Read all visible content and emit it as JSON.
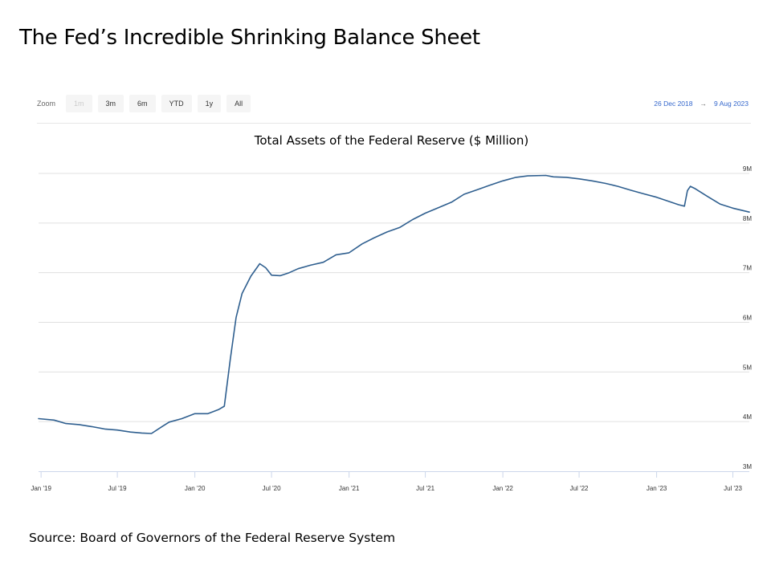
{
  "slide": {
    "title": "The Fed’s Incredible Shrinking Balance Sheet",
    "source": "Source: Board of Governors of the Federal Reserve System"
  },
  "navigator": {
    "zoom_label": "Zoom",
    "buttons": [
      {
        "label": "1m",
        "enabled": false
      },
      {
        "label": "3m",
        "enabled": true
      },
      {
        "label": "6m",
        "enabled": true
      },
      {
        "label": "YTD",
        "enabled": true
      },
      {
        "label": "1y",
        "enabled": true
      },
      {
        "label": "All",
        "enabled": true
      }
    ],
    "range_from": "26 Dec 2018",
    "range_arrow": "→",
    "range_to": "9 Aug 2023"
  },
  "colors": {
    "line": "#2f5f8f",
    "grid": "#e0e0e0",
    "range_text": "#3366cc"
  },
  "chart_data": {
    "type": "line",
    "title": "Total Assets of the Federal Reserve ($ Million)",
    "x_range": [
      "2018-12-26",
      "2023-08-09"
    ],
    "ylim": [
      3000000,
      9000000
    ],
    "y_ticks": [
      {
        "value": 3000000,
        "label": "3M"
      },
      {
        "value": 4000000,
        "label": "4M"
      },
      {
        "value": 5000000,
        "label": "5M"
      },
      {
        "value": 6000000,
        "label": "6M"
      },
      {
        "value": 7000000,
        "label": "7M"
      },
      {
        "value": 8000000,
        "label": "8M"
      },
      {
        "value": 9000000,
        "label": "9M"
      }
    ],
    "x_ticks": [
      {
        "value": "2019-01-01",
        "label": "Jan '19"
      },
      {
        "value": "2019-07-01",
        "label": "Jul '19"
      },
      {
        "value": "2020-01-01",
        "label": "Jan '20"
      },
      {
        "value": "2020-07-01",
        "label": "Jul '20"
      },
      {
        "value": "2021-01-01",
        "label": "Jan '21"
      },
      {
        "value": "2021-07-01",
        "label": "Jul '21"
      },
      {
        "value": "2022-01-01",
        "label": "Jan '22"
      },
      {
        "value": "2022-07-01",
        "label": "Jul '22"
      },
      {
        "value": "2023-01-01",
        "label": "Jan '23"
      },
      {
        "value": "2023-07-01",
        "label": "Jul '23"
      }
    ],
    "grid": true,
    "legend": "none",
    "series": [
      {
        "x": [
          "2018-12-26",
          "2019-02-01",
          "2019-03-01",
          "2019-04-01",
          "2019-05-01",
          "2019-06-01",
          "2019-07-01",
          "2019-08-01",
          "2019-08-28",
          "2019-09-20",
          "2019-10-15",
          "2019-11-01",
          "2019-12-01",
          "2020-01-01",
          "2020-02-01",
          "2020-02-26",
          "2020-03-11",
          "2020-03-25",
          "2020-04-08",
          "2020-04-22",
          "2020-05-13",
          "2020-06-03",
          "2020-06-17",
          "2020-07-01",
          "2020-07-22",
          "2020-08-12",
          "2020-09-02",
          "2020-10-01",
          "2020-11-01",
          "2020-12-01",
          "2021-01-01",
          "2021-02-01",
          "2021-03-01",
          "2021-04-01",
          "2021-05-01",
          "2021-06-01",
          "2021-07-01",
          "2021-08-01",
          "2021-09-01",
          "2021-10-01",
          "2021-11-01",
          "2021-12-01",
          "2022-01-01",
          "2022-02-01",
          "2022-03-01",
          "2022-04-13",
          "2022-05-01",
          "2022-06-01",
          "2022-07-01",
          "2022-08-01",
          "2022-09-01",
          "2022-10-01",
          "2022-11-01",
          "2022-12-01",
          "2023-01-01",
          "2023-02-01",
          "2023-02-22",
          "2023-03-08",
          "2023-03-15",
          "2023-03-22",
          "2023-04-01",
          "2023-05-01",
          "2023-06-01",
          "2023-07-01",
          "2023-08-09"
        ],
        "y": [
          4060000,
          4030000,
          3960000,
          3940000,
          3900000,
          3850000,
          3830000,
          3790000,
          3770000,
          3760000,
          3900000,
          3990000,
          4060000,
          4160000,
          4160000,
          4240000,
          4310000,
          5250000,
          6100000,
          6580000,
          6930000,
          7180000,
          7100000,
          6950000,
          6940000,
          7000000,
          7080000,
          7150000,
          7210000,
          7360000,
          7400000,
          7580000,
          7700000,
          7820000,
          7910000,
          8070000,
          8200000,
          8310000,
          8420000,
          8580000,
          8670000,
          8760000,
          8850000,
          8920000,
          8950000,
          8960000,
          8930000,
          8920000,
          8890000,
          8850000,
          8800000,
          8740000,
          8660000,
          8590000,
          8520000,
          8430000,
          8370000,
          8340000,
          8650000,
          8740000,
          8700000,
          8540000,
          8380000,
          8300000,
          8220000
        ]
      }
    ]
  }
}
